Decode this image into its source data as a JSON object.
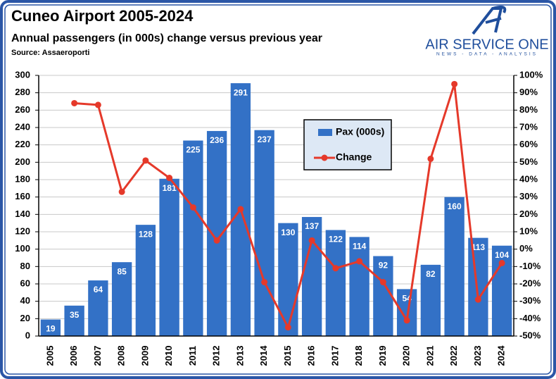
{
  "chart_data": {
    "type": "bar-line",
    "title": "Cuneo Airport 2005-2024",
    "subtitle": "Annual passengers (in 000s) change versus previous year",
    "source": "Source: Assaeroporti",
    "logo": {
      "name": "AIR SERVICE ONE",
      "tagline": "NEWS - DATA - ANALYSIS"
    },
    "categories": [
      "2005",
      "2006",
      "2007",
      "2008",
      "2009",
      "2010",
      "2011",
      "2012",
      "2013",
      "2014",
      "2015",
      "2016",
      "2017",
      "2018",
      "2019",
      "2020",
      "2021",
      "2022",
      "2023",
      "2024"
    ],
    "series": [
      {
        "name": "Pax (000s)",
        "type": "bar",
        "color": "#3371c6",
        "values": [
          19,
          35,
          64,
          85,
          128,
          181,
          225,
          236,
          291,
          237,
          130,
          137,
          122,
          114,
          92,
          54,
          82,
          160,
          113,
          104
        ]
      },
      {
        "name": "Change",
        "type": "line",
        "axis": "y2",
        "color": "#e5392a",
        "values": [
          null,
          84,
          83,
          33,
          51,
          41,
          24,
          5,
          23,
          -19,
          -45,
          5,
          -11,
          -7,
          -19,
          -41,
          52,
          95,
          -29,
          -8
        ]
      }
    ],
    "ylim": [
      0,
      300
    ],
    "yticks": [
      0,
      20,
      40,
      60,
      80,
      100,
      120,
      140,
      160,
      180,
      200,
      220,
      240,
      260,
      280,
      300
    ],
    "y2lim": [
      -50,
      100
    ],
    "y2ticks": [
      {
        "value": -50,
        "label": "-50%"
      },
      {
        "value": -40,
        "label": "-40%"
      },
      {
        "value": -30,
        "label": "-30%"
      },
      {
        "value": -20,
        "label": "-20%"
      },
      {
        "value": -10,
        "label": "-10%"
      },
      {
        "value": 0,
        "label": "0%"
      },
      {
        "value": 10,
        "label": "10%"
      },
      {
        "value": 20,
        "label": "20%"
      },
      {
        "value": 30,
        "label": "30%"
      },
      {
        "value": 40,
        "label": "40%"
      },
      {
        "value": 50,
        "label": "50%"
      },
      {
        "value": 60,
        "label": "60%"
      },
      {
        "value": 70,
        "label": "70%"
      },
      {
        "value": 80,
        "label": "80%"
      },
      {
        "value": 90,
        "label": "90%"
      },
      {
        "value": 100,
        "label": "100%"
      }
    ],
    "grid": true
  }
}
